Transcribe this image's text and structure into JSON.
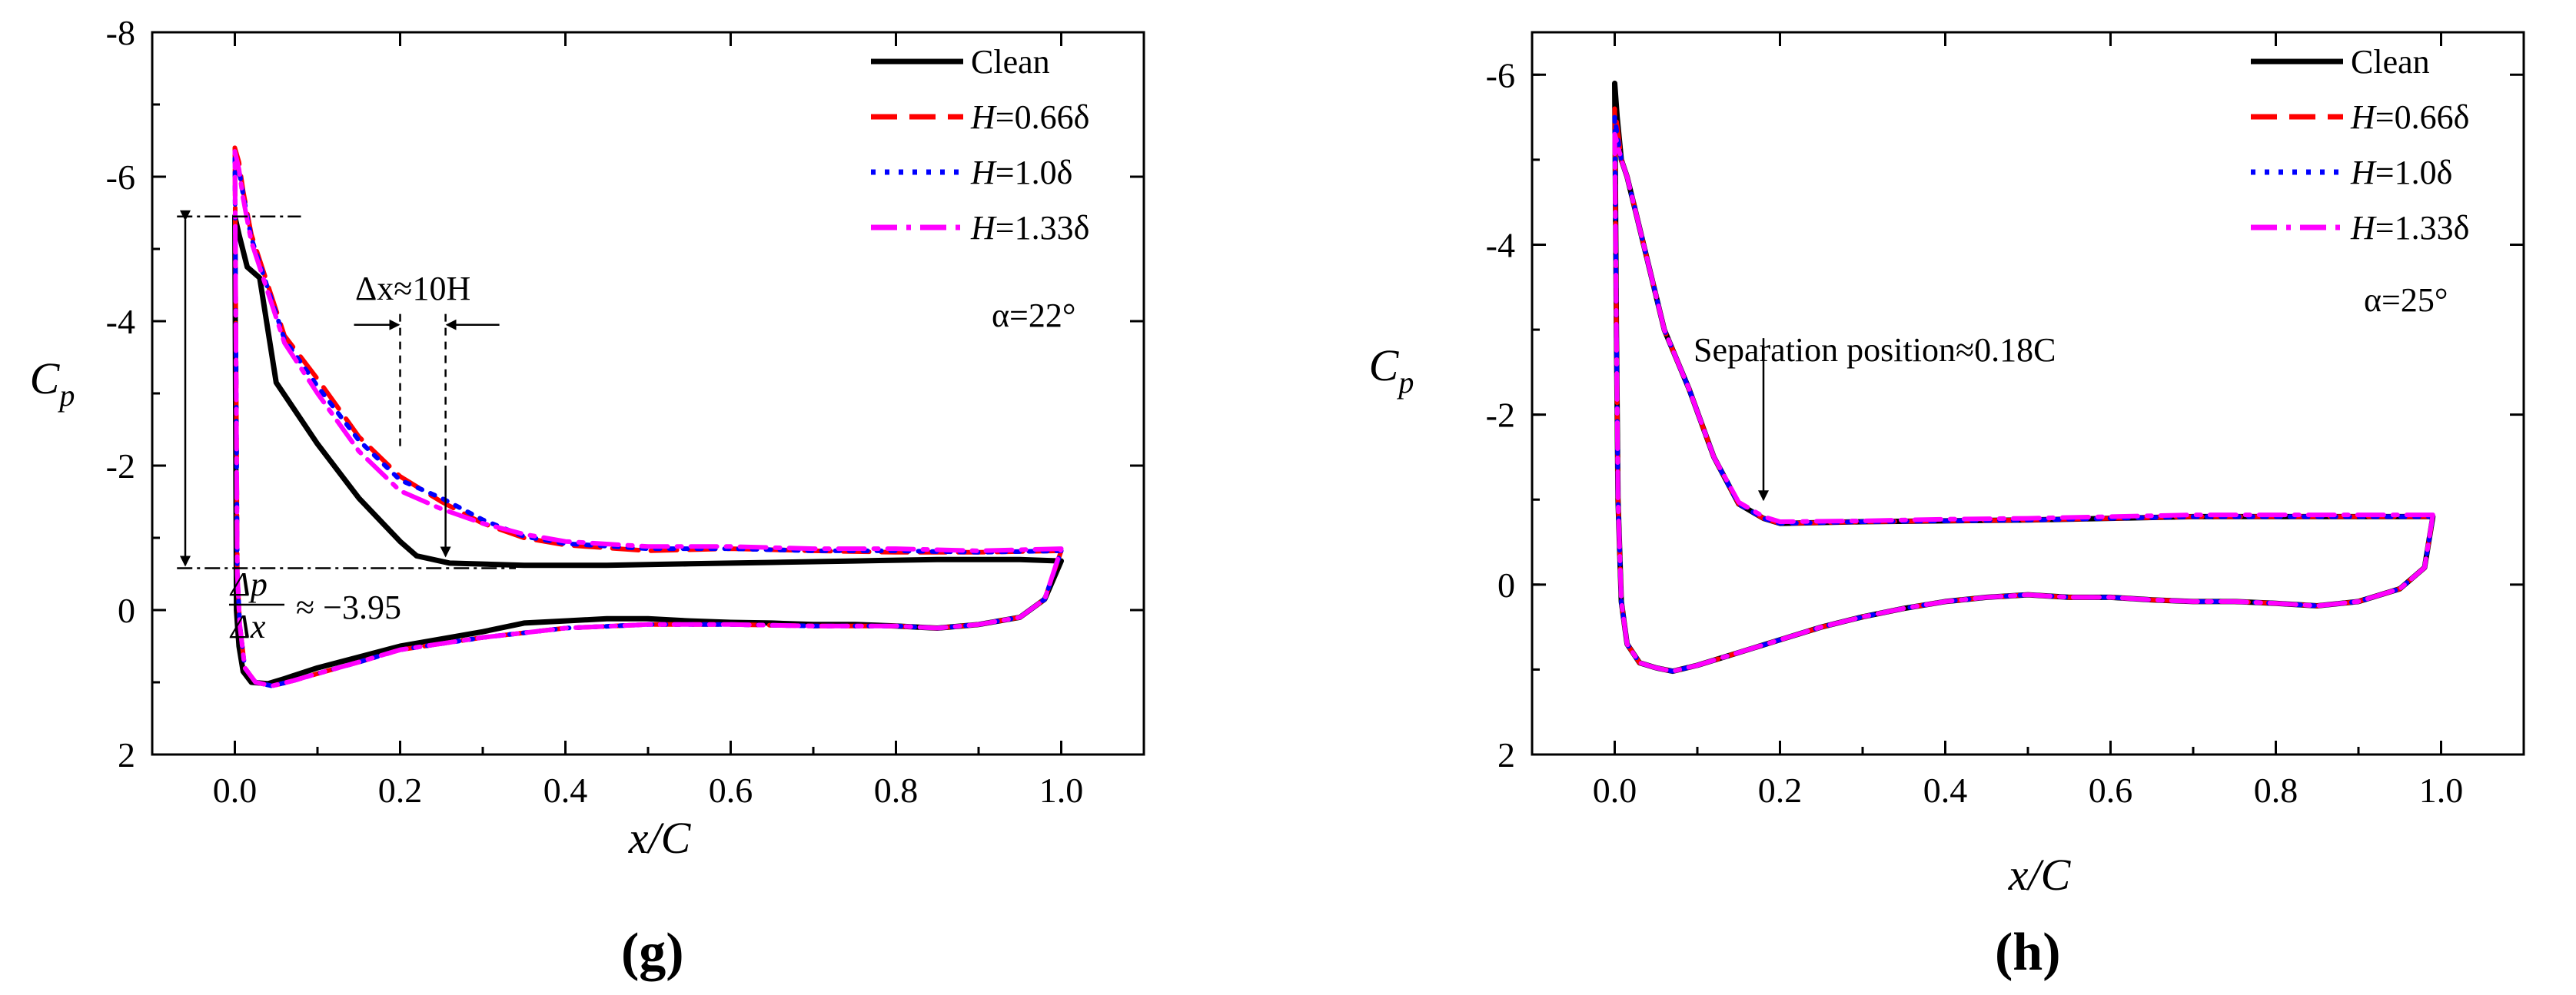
{
  "figure": {
    "panels": [
      {
        "id": "g",
        "label": "(g)",
        "alpha_text": "α=22°",
        "xlabel": "x/C",
        "ylabel": "C_p",
        "xlim": [
          -0.1,
          1.1
        ],
        "ylim": [
          -8,
          2
        ],
        "xticks": [
          0.0,
          0.2,
          0.4,
          0.6,
          0.8,
          1.0
        ],
        "xtick_labels": [
          "0.0",
          "0.2",
          "0.4",
          "0.6",
          "0.8",
          "1.0"
        ],
        "yticks": [
          -8,
          -6,
          -4,
          -2,
          0,
          2
        ],
        "ytick_labels": [
          "-8",
          "-6",
          "-4",
          "-2",
          "0",
          "2"
        ],
        "annotations": {
          "dx_text": "Δx≈10H",
          "gradient_text": "≈ −3.95",
          "gradient_num": "Δp",
          "gradient_den": "Δx",
          "level_high": -5.45,
          "level_low": -0.58,
          "dx_left": 0.2,
          "dx_right": 0.255
        }
      },
      {
        "id": "h",
        "label": "(h)",
        "alpha_text": "α=25°",
        "xlabel": "x/C",
        "ylabel": "C_p",
        "xlim": [
          -0.1,
          1.1
        ],
        "ylim": [
          -6.5,
          2
        ],
        "xticks": [
          0.0,
          0.2,
          0.4,
          0.6,
          0.8,
          1.0
        ],
        "xtick_labels": [
          "0.0",
          "0.2",
          "0.4",
          "0.6",
          "0.8",
          "1.0"
        ],
        "yticks": [
          -6,
          -4,
          -2,
          0,
          2
        ],
        "ytick_labels": [
          "-6",
          "-4",
          "-2",
          "0",
          "2"
        ],
        "annotations": {
          "separation_text": "Separation position≈0.18C",
          "separation_x": 0.18
        }
      }
    ],
    "legend": [
      {
        "name": "Clean",
        "color": "#000000",
        "style": "solid"
      },
      {
        "name": "H=0.66δ",
        "color": "#ff0000",
        "style": "dash"
      },
      {
        "name": "H=1.0δ",
        "color": "#0000ff",
        "style": "dot"
      },
      {
        "name": "H=1.33δ",
        "color": "#ff00ff",
        "style": "dashdot"
      }
    ]
  },
  "chart_data": [
    {
      "type": "line",
      "title": "(g)",
      "xlabel": "x/C",
      "ylabel": "Cp",
      "ylim": [
        2,
        -8
      ],
      "xlim": [
        -0.1,
        1.1
      ],
      "series": [
        {
          "name": "Clean",
          "x": [
            1.0,
            0.95,
            0.85,
            0.75,
            0.65,
            0.55,
            0.45,
            0.35,
            0.26,
            0.22,
            0.2,
            0.15,
            0.1,
            0.05,
            0.03,
            0.015,
            0.005,
            0.0,
            0.002,
            0.005,
            0.01,
            0.02,
            0.04,
            0.06,
            0.1,
            0.15,
            0.2,
            0.25,
            0.3,
            0.35,
            0.4,
            0.45,
            0.5,
            0.55,
            0.6,
            0.65,
            0.7,
            0.75,
            0.8,
            0.85,
            0.9,
            0.95,
            0.98,
            1.0
          ],
          "y": [
            -0.68,
            -0.7,
            -0.7,
            -0.68,
            -0.66,
            -0.64,
            -0.62,
            -0.62,
            -0.65,
            -0.75,
            -0.95,
            -1.55,
            -2.3,
            -3.15,
            -4.6,
            -4.75,
            -5.2,
            -5.45,
            0.0,
            0.5,
            0.85,
            1.0,
            1.02,
            0.95,
            0.8,
            0.65,
            0.5,
            0.4,
            0.3,
            0.18,
            0.15,
            0.12,
            0.12,
            0.15,
            0.17,
            0.18,
            0.2,
            0.2,
            0.22,
            0.25,
            0.2,
            0.1,
            -0.15,
            -0.68
          ]
        },
        {
          "name": "H=0.66δ",
          "x": [
            1.0,
            0.9,
            0.8,
            0.7,
            0.6,
            0.5,
            0.4,
            0.35,
            0.3,
            0.25,
            0.2,
            0.15,
            0.1,
            0.06,
            0.04,
            0.02,
            0.01,
            0.005,
            0.0,
            0.003,
            0.006,
            0.012,
            0.025,
            0.045,
            0.07,
            0.1,
            0.15,
            0.2,
            0.3,
            0.4,
            0.5,
            0.6,
            0.7,
            0.8,
            0.85,
            0.9,
            0.95,
            0.98,
            1.0
          ],
          "y": [
            -0.82,
            -0.8,
            -0.8,
            -0.82,
            -0.85,
            -0.82,
            -0.9,
            -1.0,
            -1.2,
            -1.5,
            -1.85,
            -2.4,
            -3.2,
            -3.8,
            -4.5,
            -5.2,
            -5.8,
            -6.2,
            -6.4,
            -0.5,
            0.2,
            0.8,
            1.0,
            1.05,
            0.98,
            0.88,
            0.72,
            0.55,
            0.38,
            0.25,
            0.2,
            0.2,
            0.22,
            0.22,
            0.25,
            0.2,
            0.1,
            -0.15,
            -0.82
          ]
        },
        {
          "name": "H=1.0δ",
          "x": [
            1.0,
            0.9,
            0.8,
            0.7,
            0.6,
            0.5,
            0.4,
            0.35,
            0.3,
            0.25,
            0.2,
            0.15,
            0.1,
            0.06,
            0.04,
            0.02,
            0.01,
            0.005,
            0.0,
            0.003,
            0.006,
            0.012,
            0.025,
            0.045,
            0.07,
            0.1,
            0.15,
            0.2,
            0.3,
            0.4,
            0.5,
            0.6,
            0.7,
            0.8,
            0.85,
            0.9,
            0.95,
            0.98,
            1.0
          ],
          "y": [
            -0.82,
            -0.8,
            -0.82,
            -0.82,
            -0.85,
            -0.85,
            -0.92,
            -1.02,
            -1.25,
            -1.55,
            -1.8,
            -2.35,
            -3.1,
            -3.75,
            -4.45,
            -5.15,
            -5.75,
            -6.1,
            -6.3,
            -0.5,
            0.2,
            0.8,
            1.0,
            1.05,
            0.98,
            0.88,
            0.72,
            0.55,
            0.38,
            0.25,
            0.2,
            0.2,
            0.22,
            0.22,
            0.25,
            0.2,
            0.1,
            -0.15,
            -0.82
          ]
        },
        {
          "name": "H=1.33δ",
          "x": [
            1.0,
            0.9,
            0.8,
            0.7,
            0.6,
            0.5,
            0.4,
            0.35,
            0.3,
            0.25,
            0.2,
            0.15,
            0.1,
            0.06,
            0.04,
            0.02,
            0.01,
            0.005,
            0.0,
            0.003,
            0.006,
            0.012,
            0.025,
            0.045,
            0.07,
            0.1,
            0.15,
            0.2,
            0.3,
            0.4,
            0.5,
            0.6,
            0.7,
            0.8,
            0.85,
            0.9,
            0.95,
            0.98,
            1.0
          ],
          "y": [
            -0.85,
            -0.82,
            -0.85,
            -0.85,
            -0.88,
            -0.88,
            -0.95,
            -1.05,
            -1.2,
            -1.4,
            -1.65,
            -2.2,
            -3.0,
            -3.7,
            -4.4,
            -5.1,
            -5.7,
            -6.1,
            -6.35,
            -0.5,
            0.2,
            0.8,
            1.0,
            1.05,
            0.98,
            0.88,
            0.72,
            0.55,
            0.38,
            0.25,
            0.2,
            0.2,
            0.22,
            0.22,
            0.25,
            0.2,
            0.1,
            -0.15,
            -0.85
          ]
        }
      ]
    },
    {
      "type": "line",
      "title": "(h)",
      "xlabel": "x/C",
      "ylabel": "Cp",
      "ylim": [
        2,
        -6.5
      ],
      "xlim": [
        -0.1,
        1.1
      ],
      "series": [
        {
          "name": "Clean",
          "x": [
            0.99,
            0.9,
            0.8,
            0.7,
            0.6,
            0.5,
            0.4,
            0.3,
            0.2,
            0.18,
            0.15,
            0.12,
            0.09,
            0.06,
            0.04,
            0.025,
            0.015,
            0.008,
            0.003,
            0.0,
            0.002,
            0.004,
            0.008,
            0.015,
            0.03,
            0.05,
            0.07,
            0.1,
            0.15,
            0.2,
            0.25,
            0.3,
            0.35,
            0.4,
            0.45,
            0.5,
            0.55,
            0.6,
            0.65,
            0.7,
            0.75,
            0.8,
            0.85,
            0.9,
            0.95,
            0.98,
            0.99
          ],
          "y": [
            -0.8,
            -0.8,
            -0.8,
            -0.8,
            -0.78,
            -0.76,
            -0.75,
            -0.74,
            -0.72,
            -0.78,
            -0.95,
            -1.5,
            -2.3,
            -3.0,
            -3.8,
            -4.4,
            -4.8,
            -5.0,
            -5.5,
            -5.9,
            -3.0,
            -1.0,
            0.2,
            0.7,
            0.92,
            0.98,
            1.02,
            0.95,
            0.8,
            0.65,
            0.5,
            0.38,
            0.28,
            0.2,
            0.15,
            0.12,
            0.15,
            0.15,
            0.18,
            0.2,
            0.2,
            0.22,
            0.25,
            0.2,
            0.05,
            -0.2,
            -0.8
          ]
        },
        {
          "name": "H=0.66δ",
          "x": [
            0.99,
            0.9,
            0.8,
            0.7,
            0.6,
            0.5,
            0.4,
            0.3,
            0.2,
            0.18,
            0.15,
            0.12,
            0.09,
            0.06,
            0.04,
            0.025,
            0.015,
            0.008,
            0.003,
            0.0,
            0.002,
            0.004,
            0.008,
            0.015,
            0.03,
            0.05,
            0.07,
            0.1,
            0.15,
            0.2,
            0.25,
            0.3,
            0.35,
            0.4,
            0.45,
            0.5,
            0.55,
            0.6,
            0.65,
            0.7,
            0.75,
            0.8,
            0.85,
            0.9,
            0.95,
            0.98,
            0.99
          ],
          "y": [
            -0.8,
            -0.8,
            -0.8,
            -0.8,
            -0.78,
            -0.76,
            -0.75,
            -0.74,
            -0.72,
            -0.78,
            -0.95,
            -1.5,
            -2.3,
            -3.0,
            -3.8,
            -4.4,
            -4.8,
            -5.0,
            -5.4,
            -5.6,
            -3.0,
            -1.0,
            0.2,
            0.7,
            0.92,
            0.98,
            1.02,
            0.95,
            0.8,
            0.65,
            0.5,
            0.38,
            0.28,
            0.2,
            0.15,
            0.12,
            0.15,
            0.15,
            0.18,
            0.2,
            0.2,
            0.22,
            0.25,
            0.2,
            0.05,
            -0.2,
            -0.8
          ]
        },
        {
          "name": "H=1.0δ",
          "x": [
            0.99,
            0.9,
            0.8,
            0.7,
            0.6,
            0.5,
            0.4,
            0.3,
            0.2,
            0.18,
            0.15,
            0.12,
            0.09,
            0.06,
            0.04,
            0.025,
            0.015,
            0.008,
            0.003,
            0.0,
            0.002,
            0.004,
            0.008,
            0.015,
            0.03,
            0.05,
            0.07,
            0.1,
            0.15,
            0.2,
            0.25,
            0.3,
            0.35,
            0.4,
            0.45,
            0.5,
            0.55,
            0.6,
            0.65,
            0.7,
            0.75,
            0.8,
            0.85,
            0.9,
            0.95,
            0.98,
            0.99
          ],
          "y": [
            -0.8,
            -0.8,
            -0.8,
            -0.8,
            -0.78,
            -0.76,
            -0.75,
            -0.74,
            -0.72,
            -0.78,
            -0.95,
            -1.5,
            -2.3,
            -3.0,
            -3.8,
            -4.4,
            -4.8,
            -5.0,
            -5.3,
            -5.5,
            -3.0,
            -1.0,
            0.2,
            0.7,
            0.92,
            0.98,
            1.02,
            0.95,
            0.8,
            0.65,
            0.5,
            0.38,
            0.28,
            0.2,
            0.15,
            0.12,
            0.15,
            0.15,
            0.18,
            0.2,
            0.2,
            0.22,
            0.25,
            0.2,
            0.05,
            -0.2,
            -0.8
          ]
        },
        {
          "name": "H=1.33δ",
          "x": [
            0.99,
            0.9,
            0.8,
            0.7,
            0.6,
            0.5,
            0.4,
            0.3,
            0.2,
            0.18,
            0.15,
            0.12,
            0.09,
            0.06,
            0.04,
            0.025,
            0.015,
            0.008,
            0.003,
            0.0,
            0.002,
            0.004,
            0.008,
            0.015,
            0.03,
            0.05,
            0.07,
            0.1,
            0.15,
            0.2,
            0.25,
            0.3,
            0.35,
            0.4,
            0.45,
            0.5,
            0.55,
            0.6,
            0.65,
            0.7,
            0.75,
            0.8,
            0.85,
            0.9,
            0.95,
            0.98,
            0.99
          ],
          "y": [
            -0.82,
            -0.82,
            -0.82,
            -0.82,
            -0.8,
            -0.78,
            -0.77,
            -0.75,
            -0.74,
            -0.8,
            -0.97,
            -1.5,
            -2.3,
            -3.0,
            -3.8,
            -4.4,
            -4.8,
            -5.0,
            -5.2,
            -5.3,
            -3.0,
            -1.0,
            0.2,
            0.7,
            0.92,
            0.98,
            1.02,
            0.95,
            0.8,
            0.65,
            0.5,
            0.38,
            0.28,
            0.2,
            0.15,
            0.12,
            0.15,
            0.15,
            0.18,
            0.2,
            0.2,
            0.22,
            0.25,
            0.2,
            0.05,
            -0.2,
            -0.82
          ]
        }
      ]
    }
  ]
}
